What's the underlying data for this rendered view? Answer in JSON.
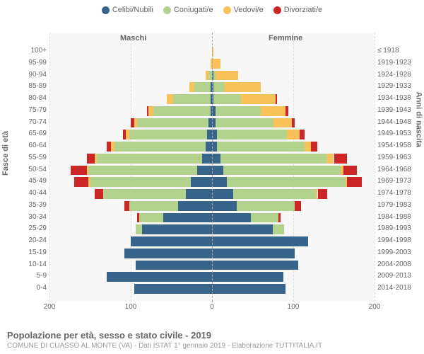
{
  "legend": [
    {
      "label": "Celibi/Nubili",
      "color": "#36648b"
    },
    {
      "label": "Coniugati/e",
      "color": "#b3d28e"
    },
    {
      "label": "Vedovi/e",
      "color": "#f8c15a"
    },
    {
      "label": "Divorziati/e",
      "color": "#cd2626"
    }
  ],
  "col_headers": {
    "left": "Maschi",
    "right": "Femmine"
  },
  "y_axis_left_title": "Fasce di età",
  "y_axis_right_title": "Anni di nascita",
  "x_ticks": [
    200,
    100,
    0,
    100,
    200
  ],
  "x_max": 200,
  "plot_bg": "#f7f7f7",
  "grid_color": "#dddddd",
  "center_color": "#bda0a0",
  "title": "Popolazione per età, sesso e stato civile - 2019",
  "subtitle": "COMUNE DI CUASSO AL MONTE (VA) - Dati ISTAT 1° gennaio 2019 - Elaborazione TUTTITALIA.IT",
  "rows": [
    {
      "age": "0-4",
      "birth": "2014-2018",
      "m": [
        96,
        0,
        0,
        0
      ],
      "f": [
        90,
        0,
        0,
        0
      ]
    },
    {
      "age": "5-9",
      "birth": "2009-2013",
      "m": [
        130,
        0,
        0,
        0
      ],
      "f": [
        88,
        0,
        0,
        0
      ]
    },
    {
      "age": "10-14",
      "birth": "2004-2008",
      "m": [
        94,
        0,
        0,
        0
      ],
      "f": [
        106,
        0,
        0,
        0
      ]
    },
    {
      "age": "15-19",
      "birth": "1999-2003",
      "m": [
        108,
        0,
        0,
        0
      ],
      "f": [
        102,
        0,
        0,
        0
      ]
    },
    {
      "age": "20-24",
      "birth": "1994-1998",
      "m": [
        100,
        0,
        0,
        0
      ],
      "f": [
        118,
        0,
        0,
        0
      ]
    },
    {
      "age": "25-29",
      "birth": "1989-1993",
      "m": [
        86,
        8,
        0,
        0
      ],
      "f": [
        75,
        14,
        0,
        0
      ]
    },
    {
      "age": "30-34",
      "birth": "1984-1988",
      "m": [
        60,
        30,
        0,
        2
      ],
      "f": [
        48,
        34,
        0,
        2
      ]
    },
    {
      "age": "35-39",
      "birth": "1979-1983",
      "m": [
        42,
        60,
        0,
        6
      ],
      "f": [
        30,
        72,
        0,
        8
      ]
    },
    {
      "age": "40-44",
      "birth": "1974-1978",
      "m": [
        32,
        102,
        0,
        10
      ],
      "f": [
        26,
        102,
        2,
        12
      ]
    },
    {
      "age": "45-49",
      "birth": "1969-1973",
      "m": [
        26,
        124,
        2,
        18
      ],
      "f": [
        18,
        146,
        2,
        18
      ]
    },
    {
      "age": "50-54",
      "birth": "1964-1968",
      "m": [
        18,
        134,
        2,
        20
      ],
      "f": [
        14,
        144,
        4,
        16
      ]
    },
    {
      "age": "55-59",
      "birth": "1959-1963",
      "m": [
        12,
        130,
        2,
        10
      ],
      "f": [
        10,
        132,
        8,
        16
      ]
    },
    {
      "age": "60-64",
      "birth": "1954-1958",
      "m": [
        8,
        112,
        4,
        6
      ],
      "f": [
        6,
        108,
        8,
        8
      ]
    },
    {
      "age": "65-69",
      "birth": "1949-1953",
      "m": [
        6,
        96,
        4,
        4
      ],
      "f": [
        6,
        86,
        16,
        6
      ]
    },
    {
      "age": "70-74",
      "birth": "1944-1948",
      "m": [
        4,
        88,
        4,
        4
      ],
      "f": [
        4,
        72,
        22,
        4
      ]
    },
    {
      "age": "75-79",
      "birth": "1939-1943",
      "m": [
        2,
        70,
        6,
        2
      ],
      "f": [
        4,
        56,
        30,
        4
      ]
    },
    {
      "age": "80-84",
      "birth": "1934-1938",
      "m": [
        2,
        46,
        8,
        0
      ],
      "f": [
        2,
        34,
        42,
        2
      ]
    },
    {
      "age": "85-89",
      "birth": "1929-1933",
      "m": [
        2,
        20,
        6,
        0
      ],
      "f": [
        2,
        14,
        44,
        0
      ]
    },
    {
      "age": "90-94",
      "birth": "1924-1928",
      "m": [
        0,
        4,
        4,
        0
      ],
      "f": [
        2,
        2,
        28,
        0
      ]
    },
    {
      "age": "95-99",
      "birth": "1919-1923",
      "m": [
        0,
        0,
        2,
        0
      ],
      "f": [
        0,
        0,
        10,
        0
      ]
    },
    {
      "age": "100+",
      "birth": "≤ 1918",
      "m": [
        0,
        0,
        0,
        0
      ],
      "f": [
        0,
        0,
        2,
        0
      ]
    }
  ]
}
